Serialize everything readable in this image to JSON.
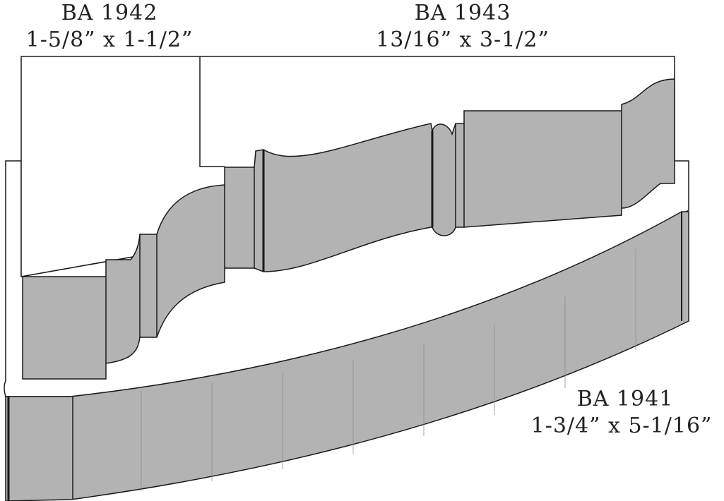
{
  "labels": [
    {
      "name": "BA 1942",
      "size": "1-5/8” x 1-1/2”"
    },
    {
      "name": "BA 1943",
      "size": "13/16” x 3-1/2”"
    },
    {
      "name": "BA 1941",
      "size": "1-3/4” x 5-1/16”"
    }
  ]
}
